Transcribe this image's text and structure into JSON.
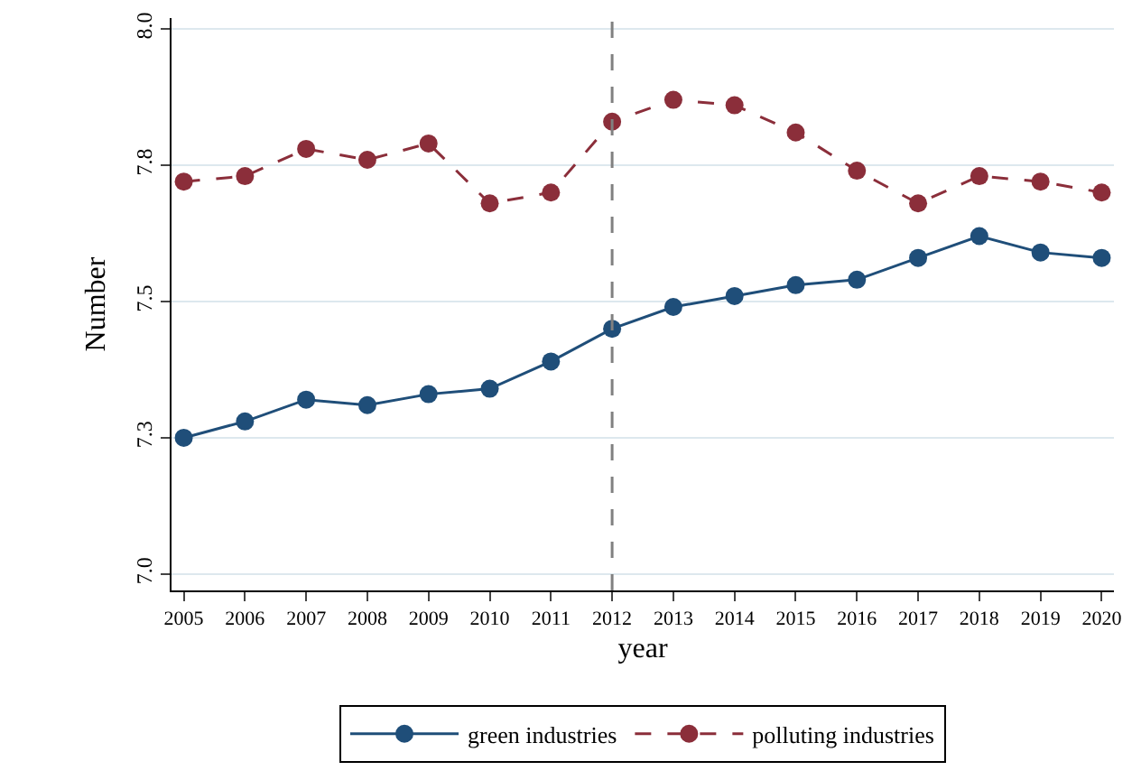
{
  "chart_data": {
    "type": "line",
    "xlabel": "year",
    "ylabel": "Number",
    "x": [
      2005,
      2006,
      2007,
      2008,
      2009,
      2010,
      2011,
      2012,
      2013,
      2014,
      2015,
      2016,
      2017,
      2018,
      2019,
      2020
    ],
    "series": [
      {
        "name": "green industries",
        "color": "#1f4e79",
        "line_style": "solid",
        "values": [
          7.25,
          7.28,
          7.32,
          7.31,
          7.33,
          7.34,
          7.39,
          7.45,
          7.49,
          7.51,
          7.53,
          7.54,
          7.58,
          7.62,
          7.59,
          7.58
        ]
      },
      {
        "name": "polluting industries",
        "color": "#8b2e3a",
        "line_style": "dashed",
        "values": [
          7.72,
          7.73,
          7.78,
          7.76,
          7.79,
          7.68,
          7.7,
          7.83,
          7.87,
          7.86,
          7.81,
          7.74,
          7.68,
          7.73,
          7.72,
          7.7
        ]
      }
    ],
    "marker": "circle",
    "xlim": [
      2004.8,
      2020.2
    ],
    "xticks": [
      2005,
      2006,
      2007,
      2008,
      2009,
      2010,
      2011,
      2012,
      2013,
      2014,
      2015,
      2016,
      2017,
      2018,
      2019,
      2020
    ],
    "ylim": [
      6.97,
      8.02
    ],
    "yticks": [
      {
        "value": 7.0,
        "label": "7.0"
      },
      {
        "value": 7.25,
        "label": "7.3"
      },
      {
        "value": 7.5,
        "label": "7.5"
      },
      {
        "value": 7.75,
        "label": "7.8"
      },
      {
        "value": 8.0,
        "label": "8.0"
      }
    ],
    "grid": "y",
    "legend": "bottom",
    "ref_lines": [
      {
        "axis": "x",
        "value": 2012,
        "color": "#808080",
        "line_style": "dashed"
      }
    ]
  }
}
